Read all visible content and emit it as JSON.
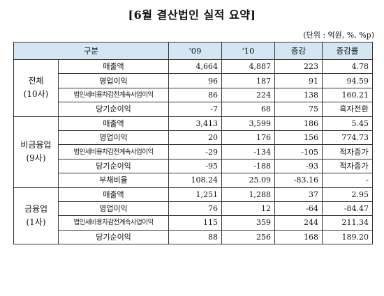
{
  "title": "[6월 결산법인 실적 요약]",
  "unit": "(단위 : 억원, %, %p)",
  "headers": [
    "구분",
    "'09",
    "'10",
    "증감",
    "증감률"
  ],
  "groups": [
    {
      "name": "전체",
      "sub": "(10사)",
      "rows": [
        {
          "label": "매출액",
          "v09": "4,664",
          "v10": "4,887",
          "diff": "223",
          "rate": "4.78"
        },
        {
          "label": "영업이익",
          "v09": "96",
          "v10": "187",
          "diff": "91",
          "rate": "94.59"
        },
        {
          "label": "법인세비용차감전계속사업이익",
          "v09": "86",
          "v10": "224",
          "diff": "138",
          "rate": "160.21"
        },
        {
          "label": "당기순이익",
          "v09": "-7",
          "v10": "68",
          "diff": "75",
          "rate": "흑자전환"
        }
      ]
    },
    {
      "name": "비금융업",
      "sub": "(9사)",
      "rows": [
        {
          "label": "매출액",
          "v09": "3,413",
          "v10": "3,599",
          "diff": "186",
          "rate": "5.45"
        },
        {
          "label": "영업이익",
          "v09": "20",
          "v10": "176",
          "diff": "156",
          "rate": "774.73"
        },
        {
          "label": "법인세비용차감전계속사업이익",
          "v09": "-29",
          "v10": "-134",
          "diff": "-105",
          "rate": "적자증가"
        },
        {
          "label": "당기순이익",
          "v09": "-95",
          "v10": "-188",
          "diff": "-93",
          "rate": "적자증가"
        },
        {
          "label": "부채비율",
          "v09": "108.24",
          "v10": "25.09",
          "diff": "-83.16",
          "rate": "-"
        }
      ]
    },
    {
      "name": "금융업",
      "sub": "(1사)",
      "rows": [
        {
          "label": "매출액",
          "v09": "1,251",
          "v10": "1,288",
          "diff": "37",
          "rate": "2.95"
        },
        {
          "label": "영업이익",
          "v09": "76",
          "v10": "12",
          "diff": "-64",
          "rate": "-84.47"
        },
        {
          "label": "법인세비용차감전계속사업이익",
          "v09": "115",
          "v10": "359",
          "diff": "244",
          "rate": "211.34"
        },
        {
          "label": "당기순이익",
          "v09": "88",
          "v10": "256",
          "diff": "168",
          "rate": "189.20"
        }
      ]
    }
  ]
}
